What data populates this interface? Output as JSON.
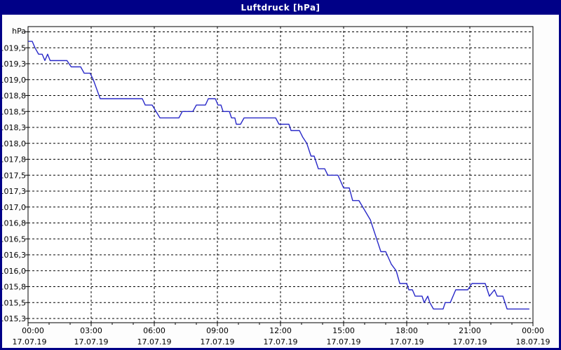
{
  "window": {
    "title": "Luftdruck [hPa]"
  },
  "colors": {
    "title_bar": "#000087",
    "title_text": "#ffffff",
    "window_border": "#000087",
    "plot_background": "#ffffff",
    "grid": "#000000",
    "frame": "#000000",
    "axis_text": "#000000",
    "line": "#2828c8"
  },
  "chart_data": {
    "type": "line",
    "title": "Luftdruck [hPa]",
    "grid": "dashed",
    "legend_position": "none",
    "y_axis": {
      "unit": "hPa",
      "min": 1015.18,
      "max": 1019.83,
      "gridline_step": 0.25,
      "gridlines": [
        1019.75,
        1019.5,
        1019.25,
        1019.0,
        1018.75,
        1018.5,
        1018.25,
        1018.0,
        1017.75,
        1017.5,
        1017.25,
        1017.0,
        1016.75,
        1016.5,
        1016.25,
        1016.0,
        1015.75,
        1015.5,
        1015.25
      ],
      "labels": [
        {
          "v": 1019.5,
          "text": "1019,5"
        },
        {
          "v": 1019.25,
          "text": "1019,3"
        },
        {
          "v": 1019.0,
          "text": "1019,0"
        },
        {
          "v": 1018.75,
          "text": "1018,8"
        },
        {
          "v": 1018.5,
          "text": "1018,5"
        },
        {
          "v": 1018.25,
          "text": "1018,3"
        },
        {
          "v": 1018.0,
          "text": "1018,0"
        },
        {
          "v": 1017.75,
          "text": "1017,8"
        },
        {
          "v": 1017.5,
          "text": "1017,5"
        },
        {
          "v": 1017.25,
          "text": "1017,3"
        },
        {
          "v": 1017.0,
          "text": "1017,0"
        },
        {
          "v": 1016.75,
          "text": "1016,8"
        },
        {
          "v": 1016.5,
          "text": "1016,5"
        },
        {
          "v": 1016.25,
          "text": "1016,3"
        },
        {
          "v": 1016.0,
          "text": "1016,0"
        },
        {
          "v": 1015.75,
          "text": "1015,8"
        },
        {
          "v": 1015.5,
          "text": "1015,5"
        },
        {
          "v": 1015.25,
          "text": "1015,3"
        }
      ]
    },
    "x_axis": {
      "range_hours": [
        0,
        24
      ],
      "minor_tick_every_hours": 1,
      "gridline_hours": [
        3,
        6,
        9,
        12,
        15,
        18,
        21
      ],
      "major_ticks": [
        {
          "hour": 0,
          "time": "00:00",
          "date": "17.07.19"
        },
        {
          "hour": 3,
          "time": "03:00",
          "date": "17.07.19"
        },
        {
          "hour": 6,
          "time": "06:00",
          "date": "17.07.19"
        },
        {
          "hour": 9,
          "time": "09:00",
          "date": "17.07.19"
        },
        {
          "hour": 12,
          "time": "12:00",
          "date": "17.07.19"
        },
        {
          "hour": 15,
          "time": "15:00",
          "date": "17.07.19"
        },
        {
          "hour": 18,
          "time": "18:00",
          "date": "17.07.19"
        },
        {
          "hour": 21,
          "time": "21:00",
          "date": "17.07.19"
        },
        {
          "hour": 24,
          "time": "00:00",
          "date": "18.07.19"
        }
      ]
    },
    "series": [
      {
        "name": "Luftdruck",
        "points": [
          [
            0.0,
            1019.6
          ],
          [
            0.2,
            1019.6
          ],
          [
            0.33,
            1019.5
          ],
          [
            0.5,
            1019.4
          ],
          [
            0.67,
            1019.4
          ],
          [
            0.8,
            1019.3
          ],
          [
            0.93,
            1019.4
          ],
          [
            1.05,
            1019.3
          ],
          [
            1.85,
            1019.3
          ],
          [
            2.05,
            1019.2
          ],
          [
            2.5,
            1019.2
          ],
          [
            2.67,
            1019.1
          ],
          [
            2.95,
            1019.1
          ],
          [
            3.1,
            1019.0
          ],
          [
            3.43,
            1018.7
          ],
          [
            5.43,
            1018.7
          ],
          [
            5.57,
            1018.6
          ],
          [
            5.9,
            1018.6
          ],
          [
            6.27,
            1018.4
          ],
          [
            7.17,
            1018.4
          ],
          [
            7.33,
            1018.5
          ],
          [
            7.83,
            1018.5
          ],
          [
            8.0,
            1018.6
          ],
          [
            8.43,
            1018.6
          ],
          [
            8.57,
            1018.7
          ],
          [
            8.9,
            1018.7
          ],
          [
            9.03,
            1018.6
          ],
          [
            9.17,
            1018.6
          ],
          [
            9.27,
            1018.5
          ],
          [
            9.57,
            1018.5
          ],
          [
            9.67,
            1018.4
          ],
          [
            9.83,
            1018.4
          ],
          [
            9.9,
            1018.3
          ],
          [
            10.1,
            1018.3
          ],
          [
            10.27,
            1018.4
          ],
          [
            11.77,
            1018.4
          ],
          [
            11.93,
            1018.3
          ],
          [
            12.4,
            1018.3
          ],
          [
            12.5,
            1018.2
          ],
          [
            12.9,
            1018.2
          ],
          [
            13.05,
            1018.1
          ],
          [
            13.25,
            1018.0
          ],
          [
            13.45,
            1017.8
          ],
          [
            13.6,
            1017.8
          ],
          [
            13.8,
            1017.6
          ],
          [
            14.1,
            1017.6
          ],
          [
            14.25,
            1017.5
          ],
          [
            14.73,
            1017.5
          ],
          [
            15.0,
            1017.3
          ],
          [
            15.27,
            1017.3
          ],
          [
            15.43,
            1017.1
          ],
          [
            15.73,
            1017.1
          ],
          [
            16.27,
            1016.8
          ],
          [
            16.57,
            1016.5
          ],
          [
            16.77,
            1016.3
          ],
          [
            17.0,
            1016.3
          ],
          [
            17.27,
            1016.1
          ],
          [
            17.5,
            1016.0
          ],
          [
            17.67,
            1015.8
          ],
          [
            18.0,
            1015.8
          ],
          [
            18.1,
            1015.7
          ],
          [
            18.27,
            1015.7
          ],
          [
            18.4,
            1015.6
          ],
          [
            18.73,
            1015.6
          ],
          [
            18.83,
            1015.5
          ],
          [
            19.0,
            1015.6
          ],
          [
            19.1,
            1015.5
          ],
          [
            19.27,
            1015.4
          ],
          [
            19.73,
            1015.4
          ],
          [
            19.83,
            1015.5
          ],
          [
            20.07,
            1015.5
          ],
          [
            20.33,
            1015.7
          ],
          [
            20.9,
            1015.7
          ],
          [
            21.1,
            1015.8
          ],
          [
            21.73,
            1015.8
          ],
          [
            21.93,
            1015.6
          ],
          [
            22.17,
            1015.7
          ],
          [
            22.3,
            1015.6
          ],
          [
            22.57,
            1015.6
          ],
          [
            22.77,
            1015.4
          ],
          [
            23.83,
            1015.4
          ]
        ]
      }
    ]
  }
}
